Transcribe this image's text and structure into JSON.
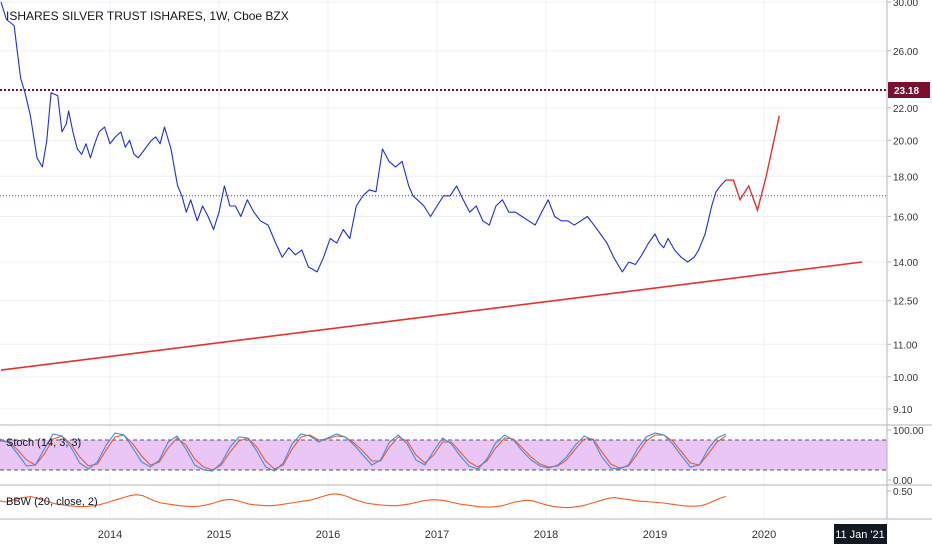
{
  "title": "ISHARES SILVER TRUST ISHARES, 1W, Cboe BZX",
  "colors": {
    "price": "#1e2fd6",
    "trend": "#e8312a",
    "resistance": "#7a1030",
    "support_dotted": "#2a3fe0",
    "stoch_k": "#3d8fe0",
    "stoch_d": "#e85a30",
    "stoch_fill": "#e9c6f5",
    "bbw": "#f06020",
    "grid": "#eef0f4",
    "axis_text": "#333333"
  },
  "chart_data": [
    {
      "type": "line",
      "title": "ISHARES SILVER TRUST ISHARES, 1W, Cboe BZX",
      "yscale": "log",
      "ylim": [
        8.7,
        30.5
      ],
      "y_ticks": [
        "30.00",
        "26.00",
        "22.00",
        "20.00",
        "18.00",
        "16.00",
        "14.00",
        "12.50",
        "11.00",
        "10.00",
        "9.10"
      ],
      "x_ticks": [
        "2014",
        "2015",
        "2016",
        "2017",
        "2018",
        "2019",
        "2020"
      ],
      "last_price_label": "23.18",
      "series": [
        {
          "x": [
            2013.0,
            2013.05,
            2013.12,
            2013.18,
            2013.22,
            2013.27,
            2013.33,
            2013.38,
            2013.42,
            2013.46,
            2013.52,
            2013.56,
            2013.6,
            2013.62,
            2013.66,
            2013.7,
            2013.74,
            2013.78,
            2013.82,
            2013.86,
            2013.9,
            2013.95,
            2014.0,
            2014.05,
            2014.1,
            2014.14,
            2014.18,
            2014.22,
            2014.26,
            2014.32,
            2014.38,
            2014.42,
            2014.46,
            2014.5,
            2014.56,
            2014.62,
            2014.66,
            2014.7,
            2014.74,
            2014.8,
            2014.85,
            2014.9,
            2014.95,
            2015.0,
            2015.05,
            2015.1,
            2015.15,
            2015.2,
            2015.26,
            2015.32,
            2015.38,
            2015.45,
            2015.52,
            2015.58,
            2015.64,
            2015.7,
            2015.76,
            2015.82,
            2015.9,
            2015.96,
            2016.02,
            2016.08,
            2016.14,
            2016.2,
            2016.26,
            2016.32,
            2016.38,
            2016.44,
            2016.5,
            2016.56,
            2016.62,
            2016.68,
            2016.74,
            2016.78,
            2016.82,
            2016.88,
            2016.94,
            2017.0,
            2017.06,
            2017.12,
            2017.18,
            2017.24,
            2017.3,
            2017.36,
            2017.42,
            2017.48,
            2017.54,
            2017.6,
            2017.66,
            2017.72,
            2017.78,
            2017.84,
            2017.9,
            2017.96,
            2018.02,
            2018.08,
            2018.14,
            2018.2,
            2018.26,
            2018.32,
            2018.38,
            2018.44,
            2018.5,
            2018.56,
            2018.62,
            2018.66,
            2018.7,
            2018.76,
            2018.82,
            2018.88,
            2018.94,
            2019.0,
            2019.04,
            2019.08,
            2019.12,
            2019.18,
            2019.24,
            2019.3,
            2019.36,
            2019.4,
            2019.46,
            2019.52,
            2019.56,
            2019.6,
            2019.65
          ],
          "values": [
            30.0,
            28.5,
            28.0,
            24.0,
            23.0,
            21.5,
            19.0,
            18.5,
            20.0,
            23.0,
            22.8,
            20.5,
            21.0,
            21.8,
            20.5,
            19.5,
            19.2,
            19.8,
            19.0,
            19.8,
            20.5,
            20.8,
            19.8,
            20.2,
            20.5,
            19.6,
            20.0,
            19.2,
            19.0,
            19.5,
            20.0,
            20.2,
            19.8,
            20.8,
            19.5,
            17.5,
            17.0,
            16.2,
            16.8,
            15.8,
            16.5,
            16.0,
            15.4,
            16.2,
            17.5,
            16.5,
            16.5,
            16.0,
            16.8,
            16.2,
            15.8,
            15.6,
            14.8,
            14.2,
            14.6,
            14.3,
            14.5,
            13.8,
            13.6,
            14.2,
            15.0,
            14.8,
            15.4,
            15.0,
            16.5,
            17.0,
            17.3,
            17.2,
            19.5,
            18.8,
            18.5,
            18.8,
            17.5,
            17.0,
            16.8,
            16.5,
            16.0,
            16.5,
            17.0,
            17.0,
            17.5,
            16.8,
            16.2,
            16.5,
            15.8,
            15.6,
            16.5,
            16.8,
            16.2,
            16.2,
            16.0,
            15.8,
            15.6,
            16.2,
            16.8,
            16.0,
            15.8,
            15.8,
            15.6,
            15.8,
            16.0,
            15.6,
            15.2,
            14.8,
            14.2,
            13.9,
            13.6,
            14.0,
            13.9,
            14.3,
            14.8,
            15.2,
            14.8,
            14.6,
            15.0,
            14.5,
            14.2,
            14.0,
            14.2,
            14.5,
            15.2,
            16.5,
            17.2,
            17.5,
            17.8
          ]
        },
        {
          "x": [
            2019.65,
            2019.72,
            2019.78,
            2019.86,
            2019.94,
            2020.02,
            2020.14
          ],
          "values": [
            17.8,
            17.8,
            16.8,
            17.5,
            16.3,
            18.0,
            21.5
          ]
        },
        {
          "x": [
            2013.0,
            2020.9
          ],
          "values": [
            10.2,
            14.0
          ]
        }
      ],
      "horizontal_lines": [
        23.18,
        17.0
      ]
    },
    {
      "type": "line",
      "title": "Stoch (14, 3, 3)",
      "ylim": [
        0,
        100
      ],
      "y_ticks": [
        "100.00",
        "0.00"
      ],
      "bands": [
        20,
        80
      ],
      "series": [
        {
          "values": [
            82,
            74,
            52,
            28,
            30,
            62,
            92,
            88,
            66,
            34,
            22,
            36,
            70,
            94,
            90,
            64,
            36,
            26,
            40,
            76,
            88,
            62,
            30,
            20,
            18,
            34,
            66,
            86,
            84,
            58,
            26,
            18,
            34,
            72,
            92,
            88,
            76,
            84,
            92,
            86,
            70,
            50,
            30,
            40,
            76,
            90,
            72,
            40,
            30,
            58,
            84,
            72,
            48,
            28,
            22,
            42,
            74,
            90,
            80,
            58,
            40,
            28,
            24,
            30,
            46,
            70,
            88,
            80,
            46,
            24,
            22,
            30,
            62,
            86,
            94,
            90,
            72,
            48,
            26,
            30,
            62,
            84,
            92
          ]
        },
        {
          "values": [
            78,
            76,
            60,
            40,
            30,
            52,
            82,
            88,
            72,
            46,
            28,
            32,
            60,
            86,
            90,
            72,
            48,
            30,
            36,
            64,
            84,
            70,
            42,
            26,
            20,
            30,
            56,
            78,
            84,
            66,
            38,
            22,
            30,
            62,
            86,
            90,
            80,
            82,
            88,
            86,
            74,
            58,
            38,
            38,
            66,
            86,
            78,
            50,
            34,
            50,
            76,
            76,
            56,
            36,
            26,
            38,
            64,
            84,
            82,
            64,
            46,
            32,
            26,
            28,
            40,
            62,
            82,
            82,
            56,
            32,
            24,
            28,
            52,
            78,
            90,
            90,
            78,
            56,
            34,
            30,
            52,
            76,
            88
          ]
        }
      ]
    },
    {
      "type": "line",
      "title": "BBW (20, close, 2)",
      "y_ticks": [
        "0.50"
      ],
      "series": [
        {
          "values": [
            0.28,
            0.26,
            0.3,
            0.34,
            0.36,
            0.38,
            0.34,
            0.3,
            0.26,
            0.22,
            0.2,
            0.18,
            0.17,
            0.16,
            0.16,
            0.18,
            0.2,
            0.24,
            0.28,
            0.32,
            0.36,
            0.4,
            0.42,
            0.4,
            0.34,
            0.28,
            0.24,
            0.22,
            0.2,
            0.18,
            0.17,
            0.16,
            0.17,
            0.19,
            0.22,
            0.26,
            0.3,
            0.32,
            0.3,
            0.26,
            0.22,
            0.2,
            0.19,
            0.18,
            0.18,
            0.2,
            0.22,
            0.24,
            0.26,
            0.28,
            0.3,
            0.34,
            0.38,
            0.42,
            0.44,
            0.42,
            0.38,
            0.32,
            0.28,
            0.24,
            0.22,
            0.2,
            0.19,
            0.18,
            0.18,
            0.2,
            0.22,
            0.25,
            0.28,
            0.3,
            0.31,
            0.3,
            0.28,
            0.25,
            0.22,
            0.2,
            0.18,
            0.16,
            0.15,
            0.15,
            0.16,
            0.18,
            0.22,
            0.26,
            0.28,
            0.3,
            0.28,
            0.24,
            0.2,
            0.17,
            0.15,
            0.14,
            0.14,
            0.16,
            0.18,
            0.22,
            0.26,
            0.3,
            0.34,
            0.36,
            0.34,
            0.32,
            0.3,
            0.28,
            0.27,
            0.26,
            0.25,
            0.24,
            0.22,
            0.2,
            0.18,
            0.17,
            0.17,
            0.18,
            0.22,
            0.28,
            0.34,
            0.38
          ]
        }
      ]
    }
  ],
  "date_label": "11 Jan '21"
}
